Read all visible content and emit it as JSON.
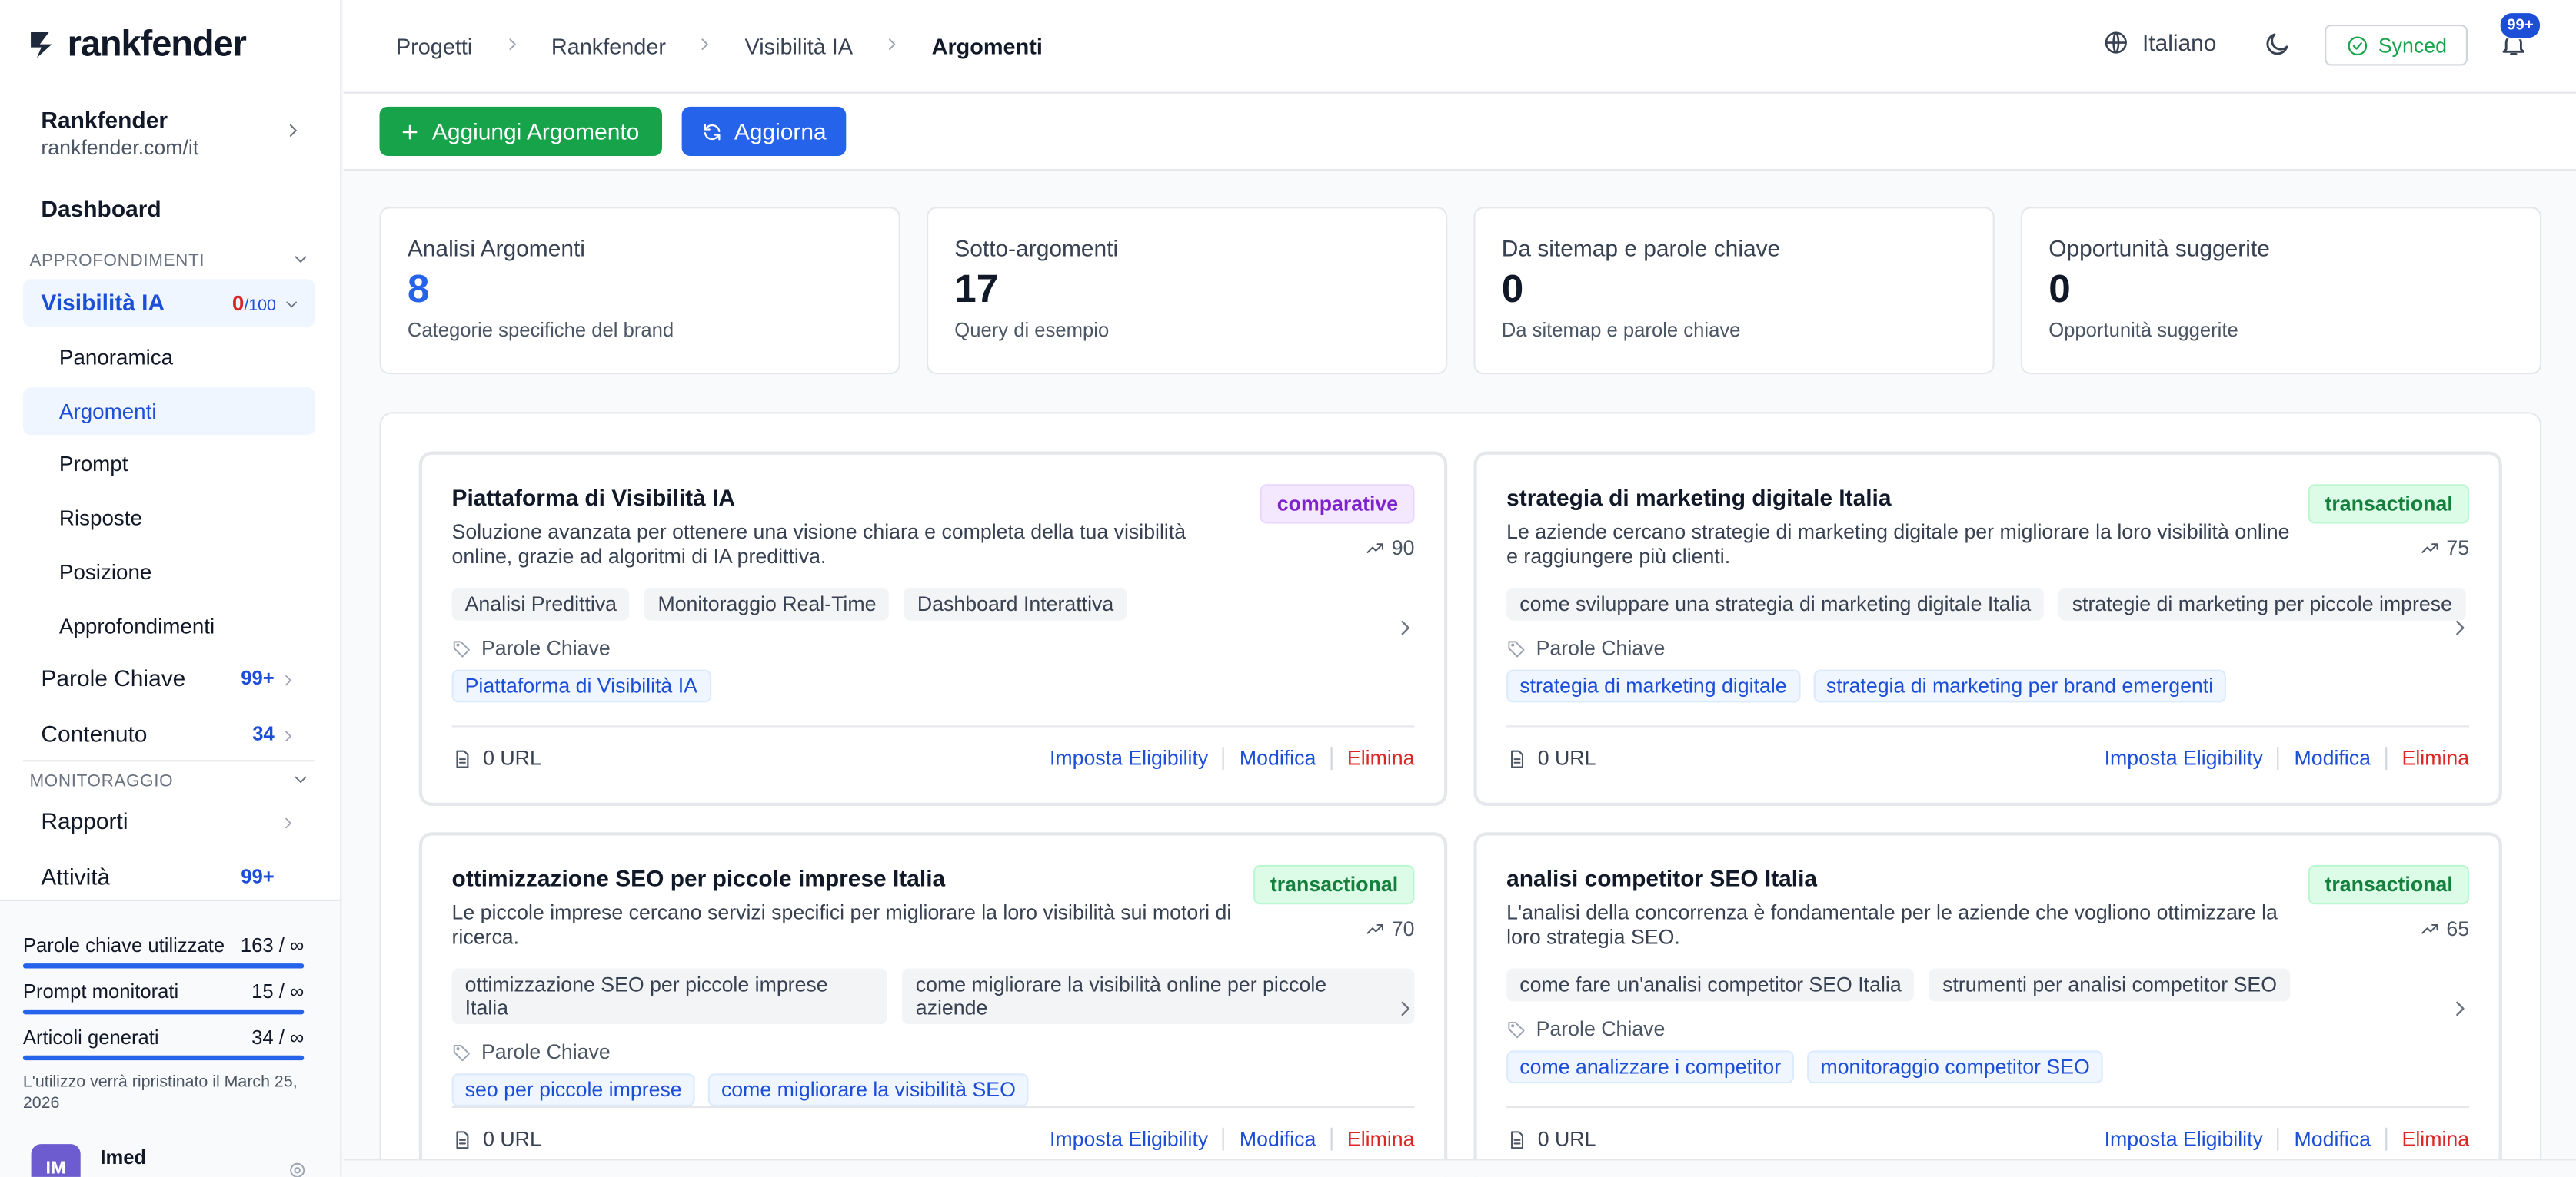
{
  "brand": "rankfender",
  "breadcrumbs": [
    "Progetti",
    "Rankfender",
    "Visibilità IA",
    "Argomenti"
  ],
  "header": {
    "language": "Italiano",
    "sync": "Synced",
    "notifications": "99+"
  },
  "actions": [
    "Aggiungi Argomento",
    "Aggiorna"
  ],
  "sidebar": {
    "project": {
      "name": "Rankfender",
      "url": "rankfender.com/it"
    },
    "dashboard": "Dashboard",
    "section1": "APPROFONDIMENTI",
    "visibility": {
      "label": "Visibilità IA",
      "score": "0",
      "max": "/100"
    },
    "subitems": [
      "Panoramica",
      "Argomenti",
      "Prompt",
      "Risposte",
      "Posizione",
      "Approfondimenti"
    ],
    "items": [
      {
        "label": "Parole Chiave",
        "count": "99+"
      },
      {
        "label": "Contenuto",
        "count": "34"
      }
    ],
    "section2": "MONITORAGGIO",
    "items2": [
      {
        "label": "Rapporti"
      },
      {
        "label": "Attività",
        "count": "99+"
      }
    ],
    "usage": [
      {
        "label": "Parole chiave utilizzate",
        "value": "163 / ∞"
      },
      {
        "label": "Prompt monitorati",
        "value": "15 / ∞"
      },
      {
        "label": "Articoli generati",
        "value": "34 / ∞"
      }
    ],
    "reset_note": "L'utilizzo verrà ripristinato il March 25, 2026",
    "user": {
      "initials": "IM",
      "name": "Imed"
    }
  },
  "stats": [
    {
      "title": "Analisi Argomenti",
      "value": 8,
      "caption": "Categorie specifiche del brand"
    },
    {
      "title": "Sotto-argomenti",
      "value": 17,
      "caption": "Query di esempio"
    },
    {
      "title": "Da sitemap e parole chiave",
      "value": 0,
      "caption": "Da sitemap e parole chiave"
    },
    {
      "title": "Opportunità suggerite",
      "value": 0,
      "caption": "Opportunità suggerite"
    }
  ],
  "topics": [
    {
      "title": "Piattaforma di Visibilità IA",
      "type": "comparative",
      "description": "Soluzione avanzata per ottenere una visione chiara e completa della tua visibilità online, grazie ad algoritmi di IA predittiva.",
      "score": 90,
      "tags": [
        "Analisi Predittiva",
        "Monitoraggio Real-Time",
        "Dashboard Interattiva"
      ],
      "keywords_label": "Parole Chiave",
      "keywords": [
        "Piattaforma di Visibilità IA"
      ],
      "urls": "0 URL",
      "actions": [
        "Imposta Eligibility",
        "Modifica",
        "Elimina"
      ]
    },
    {
      "title": "strategia di marketing digitale Italia",
      "type": "transactional",
      "description": "Le aziende cercano strategie di marketing digitale per migliorare la loro visibilità online e raggiungere più clienti.",
      "score": 75,
      "tags": [
        "come sviluppare una strategia di marketing digitale Italia",
        "strategie di marketing per piccole imprese"
      ],
      "keywords_label": "Parole Chiave",
      "keywords": [
        "strategia di marketing digitale",
        "strategia di marketing per brand emergenti"
      ],
      "urls": "0 URL",
      "actions": [
        "Imposta Eligibility",
        "Modifica",
        "Elimina"
      ]
    },
    {
      "title": "ottimizzazione SEO per piccole imprese Italia",
      "type": "transactional",
      "description": "Le piccole imprese cercano servizi specifici per migliorare la loro visibilità sui motori di ricerca.",
      "score": 70,
      "tags": [
        "ottimizzazione SEO per piccole imprese Italia",
        "come migliorare la visibilità online per piccole aziende"
      ],
      "keywords_label": "Parole Chiave",
      "keywords": [
        "seo per piccole imprese",
        "come migliorare la visibilità SEO"
      ],
      "urls": "0 URL",
      "actions": [
        "Imposta Eligibility",
        "Modifica",
        "Elimina"
      ]
    },
    {
      "title": "analisi competitor SEO Italia",
      "type": "transactional",
      "description": "L'analisi della concorrenza è fondamentale per le aziende che vogliono ottimizzare la loro strategia SEO.",
      "score": 65,
      "tags": [
        "come fare un'analisi competitor SEO Italia",
        "strumenti per analisi competitor SEO"
      ],
      "keywords_label": "Parole Chiave",
      "keywords": [
        "come analizzare i competitor",
        "monitoraggio competitor SEO"
      ],
      "urls": "0 URL",
      "actions": [
        "Imposta Eligibility",
        "Modifica",
        "Elimina"
      ]
    }
  ]
}
